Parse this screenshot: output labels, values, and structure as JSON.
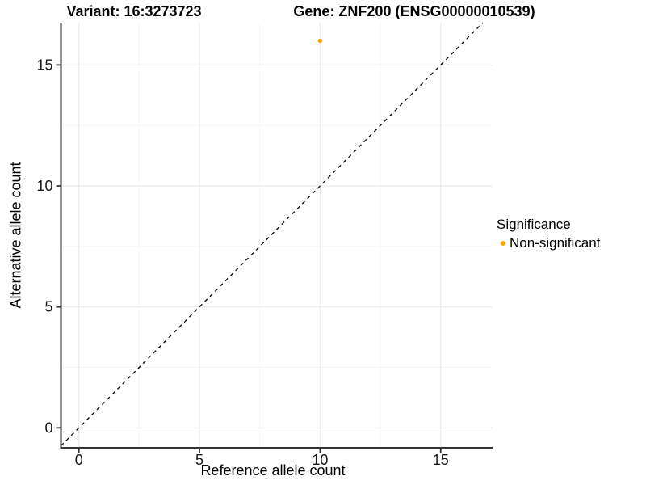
{
  "figure": {
    "title_left": "Variant: 16:3273723",
    "title_right": "Gene: ZNF200 (ENSG00000010539)"
  },
  "axes": {
    "x": {
      "label": "Reference allele count",
      "tick_values": [
        0,
        5,
        10,
        15
      ],
      "tick_labels": [
        "0",
        "5",
        "10",
        "15"
      ],
      "minor_tick_values": [
        2.5,
        7.5,
        12.5
      ]
    },
    "y": {
      "label": "Alternative allele count",
      "tick_values": [
        0,
        5,
        10,
        15
      ],
      "tick_labels": [
        "0",
        "5",
        "10",
        "15"
      ],
      "minor_tick_values": [
        2.5,
        7.5,
        12.5
      ]
    }
  },
  "legend": {
    "title": "Significance",
    "items": [
      {
        "label": "Non-significant",
        "color": "#FFA500",
        "marker": "circle"
      }
    ]
  },
  "chart_data": {
    "type": "scatter",
    "title": "Variant: 16:3273723 | Gene: ZNF200 (ENSG00000010539)",
    "xlabel": "Reference allele count",
    "ylabel": "Alternative allele count",
    "xlim": [
      -0.8,
      17.2
    ],
    "ylim": [
      -0.9,
      16.8
    ],
    "x_ticks": [
      0,
      5,
      10,
      15
    ],
    "y_ticks": [
      0,
      5,
      10,
      15
    ],
    "grid": "major+minor",
    "legend_position": "right-center",
    "series": [
      {
        "name": "Non-significant",
        "color": "#FFA500",
        "marker": "circle",
        "points": [
          {
            "x": 10,
            "y": 16
          }
        ]
      }
    ],
    "reference_line": {
      "kind": "identity y=x",
      "linestyle": "dashed",
      "color": "#000000"
    }
  },
  "colors": {
    "background": "#FFFFFF",
    "axis_line": "#333333",
    "grid_major": "#EBEBEB",
    "grid_minor": "#F5F5F5",
    "tick_text": "#1A1A1A",
    "point": "#FFA500"
  }
}
